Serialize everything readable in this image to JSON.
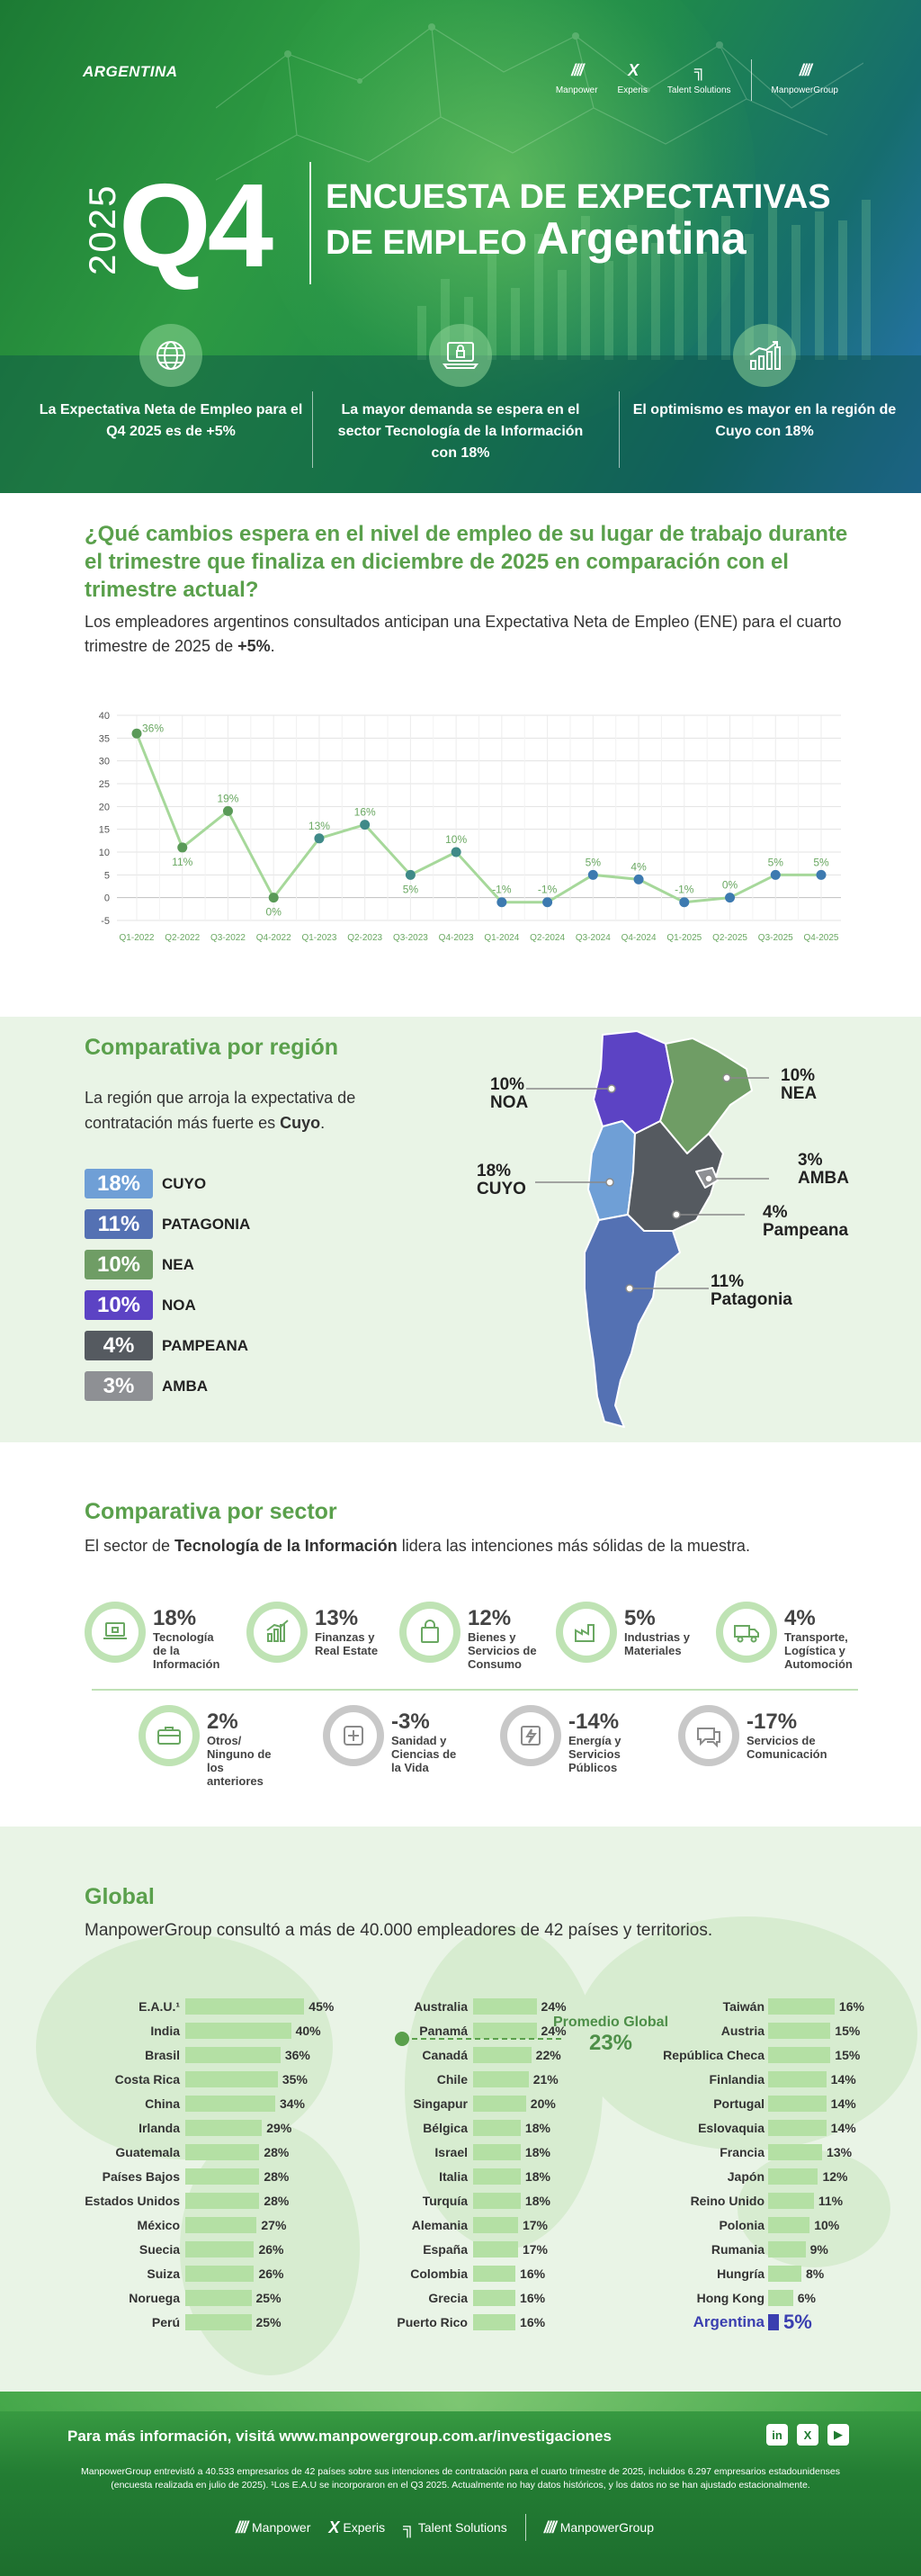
{
  "header": {
    "country": "ARGENTINA",
    "year": "2025",
    "quarter": "Q4",
    "title_line1": "ENCUESTA DE EXPECTATIVAS",
    "title_line2_prefix": "DE EMPLEO",
    "title_line2_country": "Argentina",
    "logos": [
      {
        "mark": "////",
        "name": "Manpower"
      },
      {
        "mark": "X",
        "name": "Experis"
      },
      {
        "mark": "╗",
        "name": "Talent Solutions"
      },
      {
        "mark": "////",
        "name": "ManpowerGroup"
      }
    ],
    "highlights": [
      {
        "icon": "globe-icon",
        "text": "La Expectativa Neta de Empleo para el Q4 2025 es de +5%"
      },
      {
        "icon": "laptop-lock-icon",
        "text": "La mayor demanda se espera en el sector Tecnología de la Información con 18%"
      },
      {
        "icon": "growth-chart-icon",
        "text": "El optimismo es mayor en la región de Cuyo con 18%"
      }
    ]
  },
  "question": {
    "title": "¿Qué cambios espera en el nivel de empleo de su lugar de trabajo durante el trimestre que finaliza en diciembre de 2025 en comparación con el trimestre actual?",
    "text_prefix": "Los empleadores argentinos consultados anticipan una Expectativa Neta de Empleo (ENE) para el cuarto trimestre de 2025 de ",
    "text_value": "+5%",
    "text_suffix": "."
  },
  "chart_data": {
    "type": "line",
    "categories": [
      "Q1-2022",
      "Q2-2022",
      "Q3-2022",
      "Q4-2022",
      "Q1-2023",
      "Q2-2023",
      "Q3-2023",
      "Q4-2023",
      "Q1-2024",
      "Q2-2024",
      "Q3-2024",
      "Q4-2024",
      "Q1-2025",
      "Q2-2025",
      "Q3-2025",
      "Q4-2025"
    ],
    "series": [
      {
        "values": [
          36,
          11,
          19,
          0,
          13,
          16,
          5,
          10,
          -1,
          -1,
          5,
          4,
          -1,
          0,
          5,
          5
        ]
      }
    ],
    "data_labels": [
      "36%",
      "11%",
      "19%",
      "0%",
      "13%",
      "16%",
      "5%",
      "10%",
      "-1%",
      "-1%",
      "5%",
      "4%",
      "-1%",
      "0%",
      "5%",
      "5%"
    ],
    "yticks": [
      "40",
      "35",
      "30",
      "25",
      "20",
      "15",
      "10",
      "5",
      "0",
      "-5"
    ],
    "ylim": [
      -5,
      40
    ],
    "grid": true,
    "colors": {
      "line": "#a6d89a",
      "point_2022": "#5a9a58",
      "point_2023": "#3f8a88",
      "point_later": "#3d7ab0"
    }
  },
  "region": {
    "title": "Comparativa por región",
    "text_prefix": "La región que arroja la expectativa de contratación más fuerte es ",
    "text_bold": "Cuyo",
    "text_suffix": ".",
    "items": [
      {
        "pct": "18%",
        "name": "CUYO",
        "color": "#6f9fd6"
      },
      {
        "pct": "11%",
        "name": "PATAGONIA",
        "color": "#5471b3"
      },
      {
        "pct": "10%",
        "name": "NEA",
        "color": "#6f9d65"
      },
      {
        "pct": "10%",
        "name": "NOA",
        "color": "#5c43c4"
      },
      {
        "pct": "4%",
        "name": "PAMPEANA",
        "color": "#555a60"
      },
      {
        "pct": "3%",
        "name": "AMBA",
        "color": "#8e9094"
      }
    ],
    "map_labels": [
      {
        "pct": "10%",
        "name": "NOA"
      },
      {
        "pct": "10%",
        "name": "NEA"
      },
      {
        "pct": "3%",
        "name": "AMBA"
      },
      {
        "pct": "18%",
        "name": "CUYO"
      },
      {
        "pct": "4%",
        "name": "Pampeana"
      },
      {
        "pct": "11%",
        "name": "Patagonia"
      }
    ]
  },
  "sector": {
    "title": "Comparativa por sector",
    "text_prefix": "El sector de ",
    "text_bold": "Tecnología de la Información",
    "text_suffix": " lidera las intenciones más sólidas de la muestra.",
    "items": [
      {
        "value": "18%",
        "label": "Tecnología de la Información",
        "icon": "laptop-lock-icon",
        "positive": true
      },
      {
        "value": "13%",
        "label": "Finanzas y Real Estate",
        "icon": "finance-chart-icon",
        "positive": true
      },
      {
        "value": "12%",
        "label": "Bienes y Servicios de Consumo",
        "icon": "shopping-bag-icon",
        "positive": true
      },
      {
        "value": "5%",
        "label": "Industrias y Materiales",
        "icon": "factory-icon",
        "positive": true
      },
      {
        "value": "4%",
        "label": "Transporte, Logística y Automoción",
        "icon": "truck-icon",
        "positive": true
      },
      {
        "value": "2%",
        "label": "Otros/ Ninguno de los anteriores",
        "icon": "briefcase-icon",
        "positive": true
      },
      {
        "value": "-3%",
        "label": "Sanidad y Ciencias de la Vida",
        "icon": "medical-icon",
        "positive": false
      },
      {
        "value": "-14%",
        "label": "Energía y Servicios Públicos",
        "icon": "energy-icon",
        "positive": false
      },
      {
        "value": "-17%",
        "label": "Servicios de Comunicación",
        "icon": "chat-icon",
        "positive": false
      }
    ]
  },
  "global": {
    "title": "Global",
    "text": "ManpowerGroup consultó a más de 40.000 empleadores de 42 países y territorios.",
    "average_label": "Promedio Global",
    "average_value": "23%",
    "columns": [
      [
        {
          "country": "E.A.U.¹",
          "value": 45,
          "label": "45%"
        },
        {
          "country": "India",
          "value": 40,
          "label": "40%"
        },
        {
          "country": "Brasil",
          "value": 36,
          "label": "36%"
        },
        {
          "country": "Costa Rica",
          "value": 35,
          "label": "35%"
        },
        {
          "country": "China",
          "value": 34,
          "label": "34%"
        },
        {
          "country": "Irlanda",
          "value": 29,
          "label": "29%"
        },
        {
          "country": "Guatemala",
          "value": 28,
          "label": "28%"
        },
        {
          "country": "Países Bajos",
          "value": 28,
          "label": "28%"
        },
        {
          "country": "Estados Unidos",
          "value": 28,
          "label": "28%"
        },
        {
          "country": "México",
          "value": 27,
          "label": "27%"
        },
        {
          "country": "Suecia",
          "value": 26,
          "label": "26%"
        },
        {
          "country": "Suiza",
          "value": 26,
          "label": "26%"
        },
        {
          "country": "Noruega",
          "value": 25,
          "label": "25%"
        },
        {
          "country": "Perú",
          "value": 25,
          "label": "25%"
        }
      ],
      [
        {
          "country": "Australia",
          "value": 24,
          "label": "24%"
        },
        {
          "country": "Panamá",
          "value": 24,
          "label": "24%"
        },
        {
          "country": "Canadá",
          "value": 22,
          "label": "22%"
        },
        {
          "country": "Chile",
          "value": 21,
          "label": "21%"
        },
        {
          "country": "Singapur",
          "value": 20,
          "label": "20%"
        },
        {
          "country": "Bélgica",
          "value": 18,
          "label": "18%"
        },
        {
          "country": "Israel",
          "value": 18,
          "label": "18%"
        },
        {
          "country": "Italia",
          "value": 18,
          "label": "18%"
        },
        {
          "country": "Turquía",
          "value": 18,
          "label": "18%"
        },
        {
          "country": "Alemania",
          "value": 17,
          "label": "17%"
        },
        {
          "country": "España",
          "value": 17,
          "label": "17%"
        },
        {
          "country": "Colombia",
          "value": 16,
          "label": "16%"
        },
        {
          "country": "Grecia",
          "value": 16,
          "label": "16%"
        },
        {
          "country": "Puerto Rico",
          "value": 16,
          "label": "16%"
        }
      ],
      [
        {
          "country": "Taiwán",
          "value": 16,
          "label": "16%"
        },
        {
          "country": "Austria",
          "value": 15,
          "label": "15%"
        },
        {
          "country": "República Checa",
          "value": 15,
          "label": "15%"
        },
        {
          "country": "Finlandia",
          "value": 14,
          "label": "14%"
        },
        {
          "country": "Portugal",
          "value": 14,
          "label": "14%"
        },
        {
          "country": "Eslovaquia",
          "value": 14,
          "label": "14%"
        },
        {
          "country": "Francia",
          "value": 13,
          "label": "13%"
        },
        {
          "country": "Japón",
          "value": 12,
          "label": "12%"
        },
        {
          "country": "Reino Unido",
          "value": 11,
          "label": "11%"
        },
        {
          "country": "Polonia",
          "value": 10,
          "label": "10%"
        },
        {
          "country": "Rumania",
          "value": 9,
          "label": "9%"
        },
        {
          "country": "Hungría",
          "value": 8,
          "label": "8%"
        },
        {
          "country": "Hong Kong",
          "value": 6,
          "label": "6%"
        },
        {
          "country": "Argentina",
          "value": 5,
          "label": "5%",
          "highlight": true
        }
      ]
    ]
  },
  "footer": {
    "info_prefix": "Para más información, visitá ",
    "info_link": "www.manpowergroup.com.ar/investigaciones",
    "note": "ManpowerGroup entrevistó a 40.533 empresarios de 42 países sobre sus intenciones de contratación para el cuarto trimestre de 2025, incluidos 6.297 empresarios estadounidenses (encuesta realizada en julio de 2025). ¹Los E.A.U se incorporaron en el Q3 2025. Actualmente no hay datos históricos, y los datos no se han ajustado estacionalmente.",
    "social": [
      {
        "icon": "linkedin-icon",
        "label": "in"
      },
      {
        "icon": "x-icon",
        "label": "X"
      },
      {
        "icon": "youtube-icon",
        "label": "▶"
      }
    ],
    "logos": [
      "Manpower",
      "Experis",
      "Talent Solutions",
      "ManpowerGroup"
    ]
  },
  "colors": {
    "accent": "#5aa04c",
    "argentina": "#3b3fb0"
  }
}
